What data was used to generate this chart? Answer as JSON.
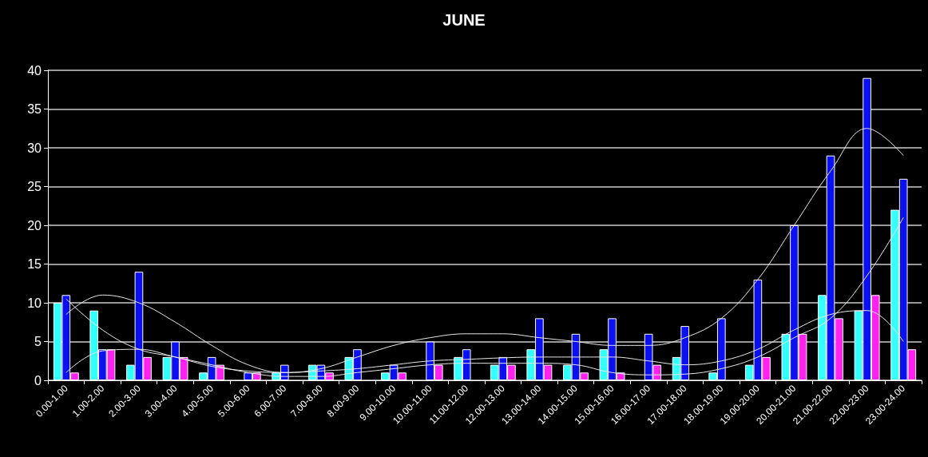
{
  "chart_data": {
    "type": "bar",
    "title": "JUNE",
    "categories": [
      "0.00-1.00",
      "1.00-2.00",
      "2.00-3.00",
      "3.00-4.00",
      "4.00-5.00",
      "5.00-6.00",
      "6.00-7.00",
      "7.00-8.00",
      "8.00-9.00",
      "9.00-10.00",
      "10.00-11.00",
      "11.00-12.00",
      "12.00-13.00",
      "13.00-14.00",
      "14.00-15.00",
      "15.00-16.00",
      "16.00-17.00",
      "17.00-18.00",
      "18.00-19.00",
      "19.00-20.00",
      "20.00-21.00",
      "21.00-22.00",
      "22.00-23.00",
      "23.00-24.00"
    ],
    "series": [
      {
        "color": "#33ffff",
        "values": [
          10,
          9,
          2,
          3,
          1,
          0,
          1,
          2,
          3,
          1,
          0,
          3,
          2,
          4,
          2,
          4,
          0,
          3,
          1,
          2,
          6,
          11,
          9,
          22
        ]
      },
      {
        "color": "#0a10f0",
        "values": [
          11,
          4,
          14,
          5,
          3,
          1,
          2,
          2,
          4,
          2,
          5,
          4,
          3,
          8,
          6,
          8,
          6,
          7,
          8,
          13,
          20,
          29,
          39,
          26
        ]
      },
      {
        "color": "#ff22ee",
        "values": [
          1,
          4,
          3,
          3,
          2,
          1,
          0,
          1,
          0,
          1,
          2,
          0,
          2,
          2,
          1,
          1,
          2,
          0,
          0,
          3,
          6,
          8,
          11,
          4
        ]
      },
      {
        "type": "line",
        "color": "#e6e6e6",
        "values": [
          10.5,
          6.5,
          4,
          3,
          1.8,
          1.2,
          1,
          1.2,
          1.5,
          2,
          2.5,
          2.7,
          2.9,
          3,
          3,
          3,
          2.5,
          2,
          2.5,
          4,
          6.5,
          8.5,
          9,
          5
        ]
      },
      {
        "type": "line",
        "color": "#e6e6e6",
        "values": [
          8.5,
          11,
          10,
          7.5,
          4.5,
          2,
          1,
          1.5,
          3,
          4.5,
          5.5,
          6,
          6,
          5.5,
          5,
          4.5,
          4.5,
          5.5,
          8,
          13,
          20,
          27,
          32.5,
          29
        ]
      },
      {
        "type": "line",
        "color": "#e6e6e6",
        "values": [
          1,
          3.8,
          4,
          3,
          2,
          1,
          0.5,
          0.5,
          1,
          1.5,
          2,
          2.2,
          2.2,
          2.2,
          2,
          1,
          0.7,
          0.8,
          1.5,
          3,
          5.5,
          8,
          13.5,
          21
        ]
      }
    ],
    "ylim": [
      0,
      40
    ],
    "yticks": [
      0,
      5,
      10,
      15,
      20,
      25,
      30,
      35,
      40
    ],
    "grid": "y",
    "marker": "none"
  }
}
